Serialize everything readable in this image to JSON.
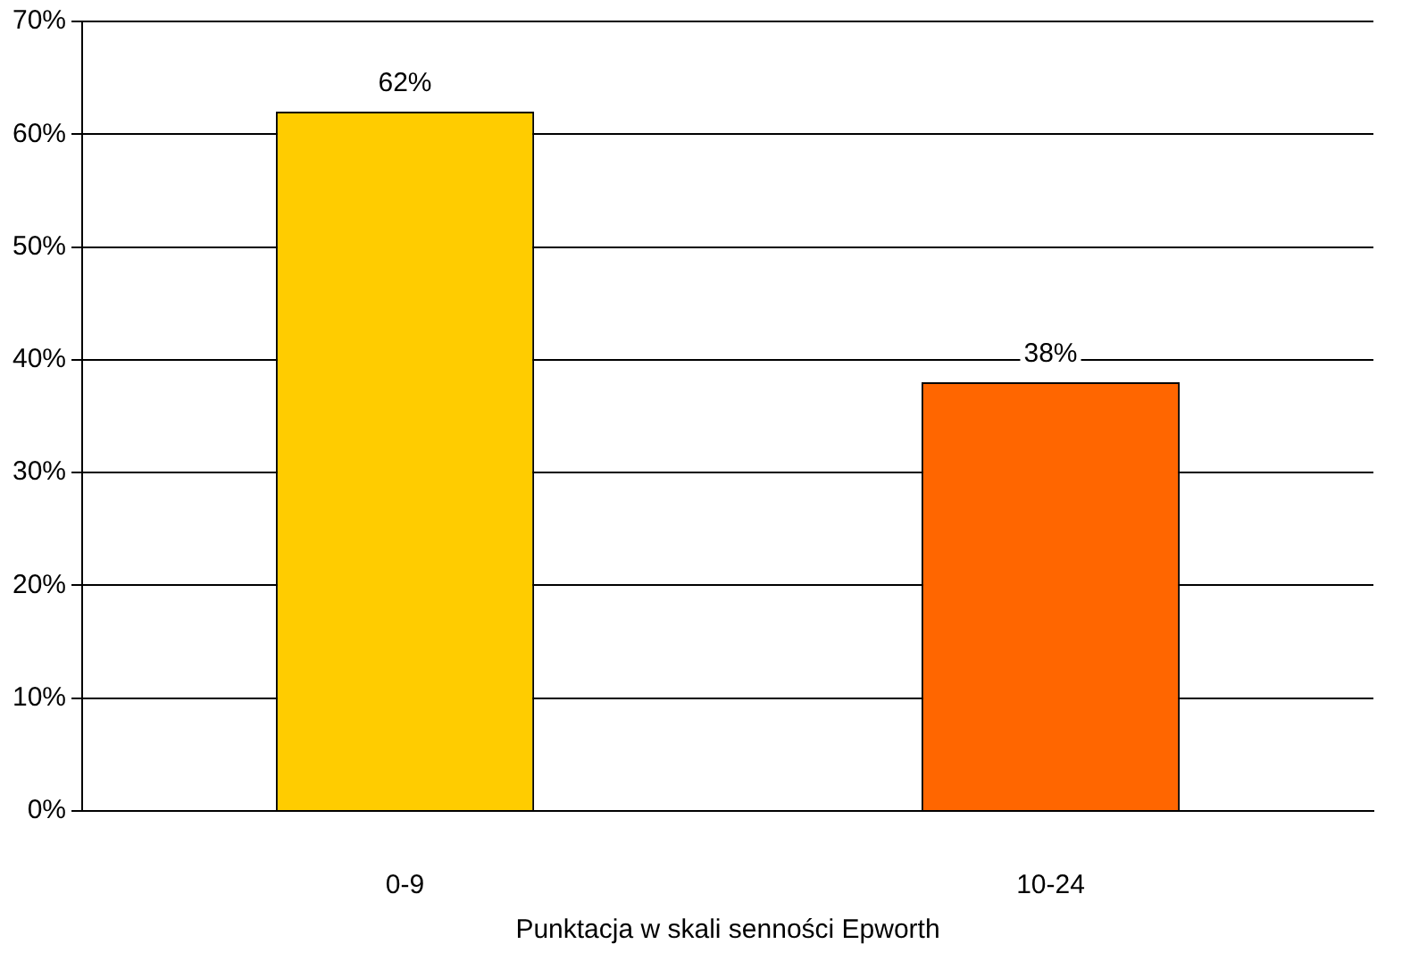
{
  "chart_data": {
    "type": "bar",
    "xlabel": "Punktacja w skali senności Epworth",
    "categories": [
      "0-9",
      "10-24"
    ],
    "values": [
      62,
      38
    ],
    "colors": [
      "#ffcc00",
      "#ff6600"
    ],
    "value_labels": [
      "62%",
      "38%"
    ],
    "ylim": [
      0,
      70
    ],
    "yticks": [
      {
        "value": 0,
        "label": "0%"
      },
      {
        "value": 10,
        "label": "10%"
      },
      {
        "value": 20,
        "label": "20%"
      },
      {
        "value": 30,
        "label": "30%"
      },
      {
        "value": 40,
        "label": "40%"
      },
      {
        "value": 50,
        "label": "50%"
      },
      {
        "value": 60,
        "label": "60%"
      },
      {
        "value": 70,
        "label": "70%"
      }
    ],
    "grid": "y",
    "legend": false
  }
}
